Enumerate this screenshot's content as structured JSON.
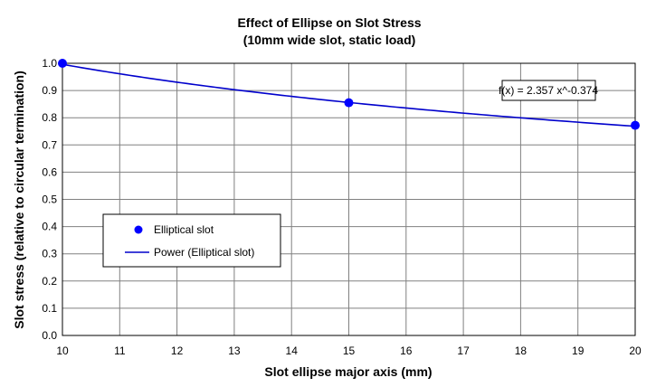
{
  "chart_data": {
    "type": "scatter",
    "title": "Effect of Ellipse on Slot Stress",
    "subtitle": "(10mm wide slot, static load)",
    "xlabel": "Slot ellipse major axis (mm)",
    "ylabel": "Slot stress (relative to circular termination)",
    "xlim": [
      10,
      20
    ],
    "ylim": [
      0,
      1.0
    ],
    "x_ticks": [
      "10",
      "11",
      "12",
      "13",
      "14",
      "15",
      "16",
      "17",
      "18",
      "19",
      "20"
    ],
    "y_ticks": [
      "0.0",
      "0.1",
      "0.2",
      "0.3",
      "0.4",
      "0.5",
      "0.6",
      "0.7",
      "0.8",
      "0.9",
      "1.0"
    ],
    "grid": true,
    "series": [
      {
        "name": "Elliptical slot",
        "kind": "points",
        "color": "#0000ff",
        "x": [
          10,
          15,
          20
        ],
        "y": [
          1.0,
          0.855,
          0.772
        ]
      }
    ],
    "trendline": {
      "name": "Power (Elliptical slot)",
      "color": "#0000cc",
      "a": 2.357,
      "b": -0.374
    },
    "annotation": "f(x) = 2.357 x^-0.374",
    "legend_position": "lower-left"
  }
}
